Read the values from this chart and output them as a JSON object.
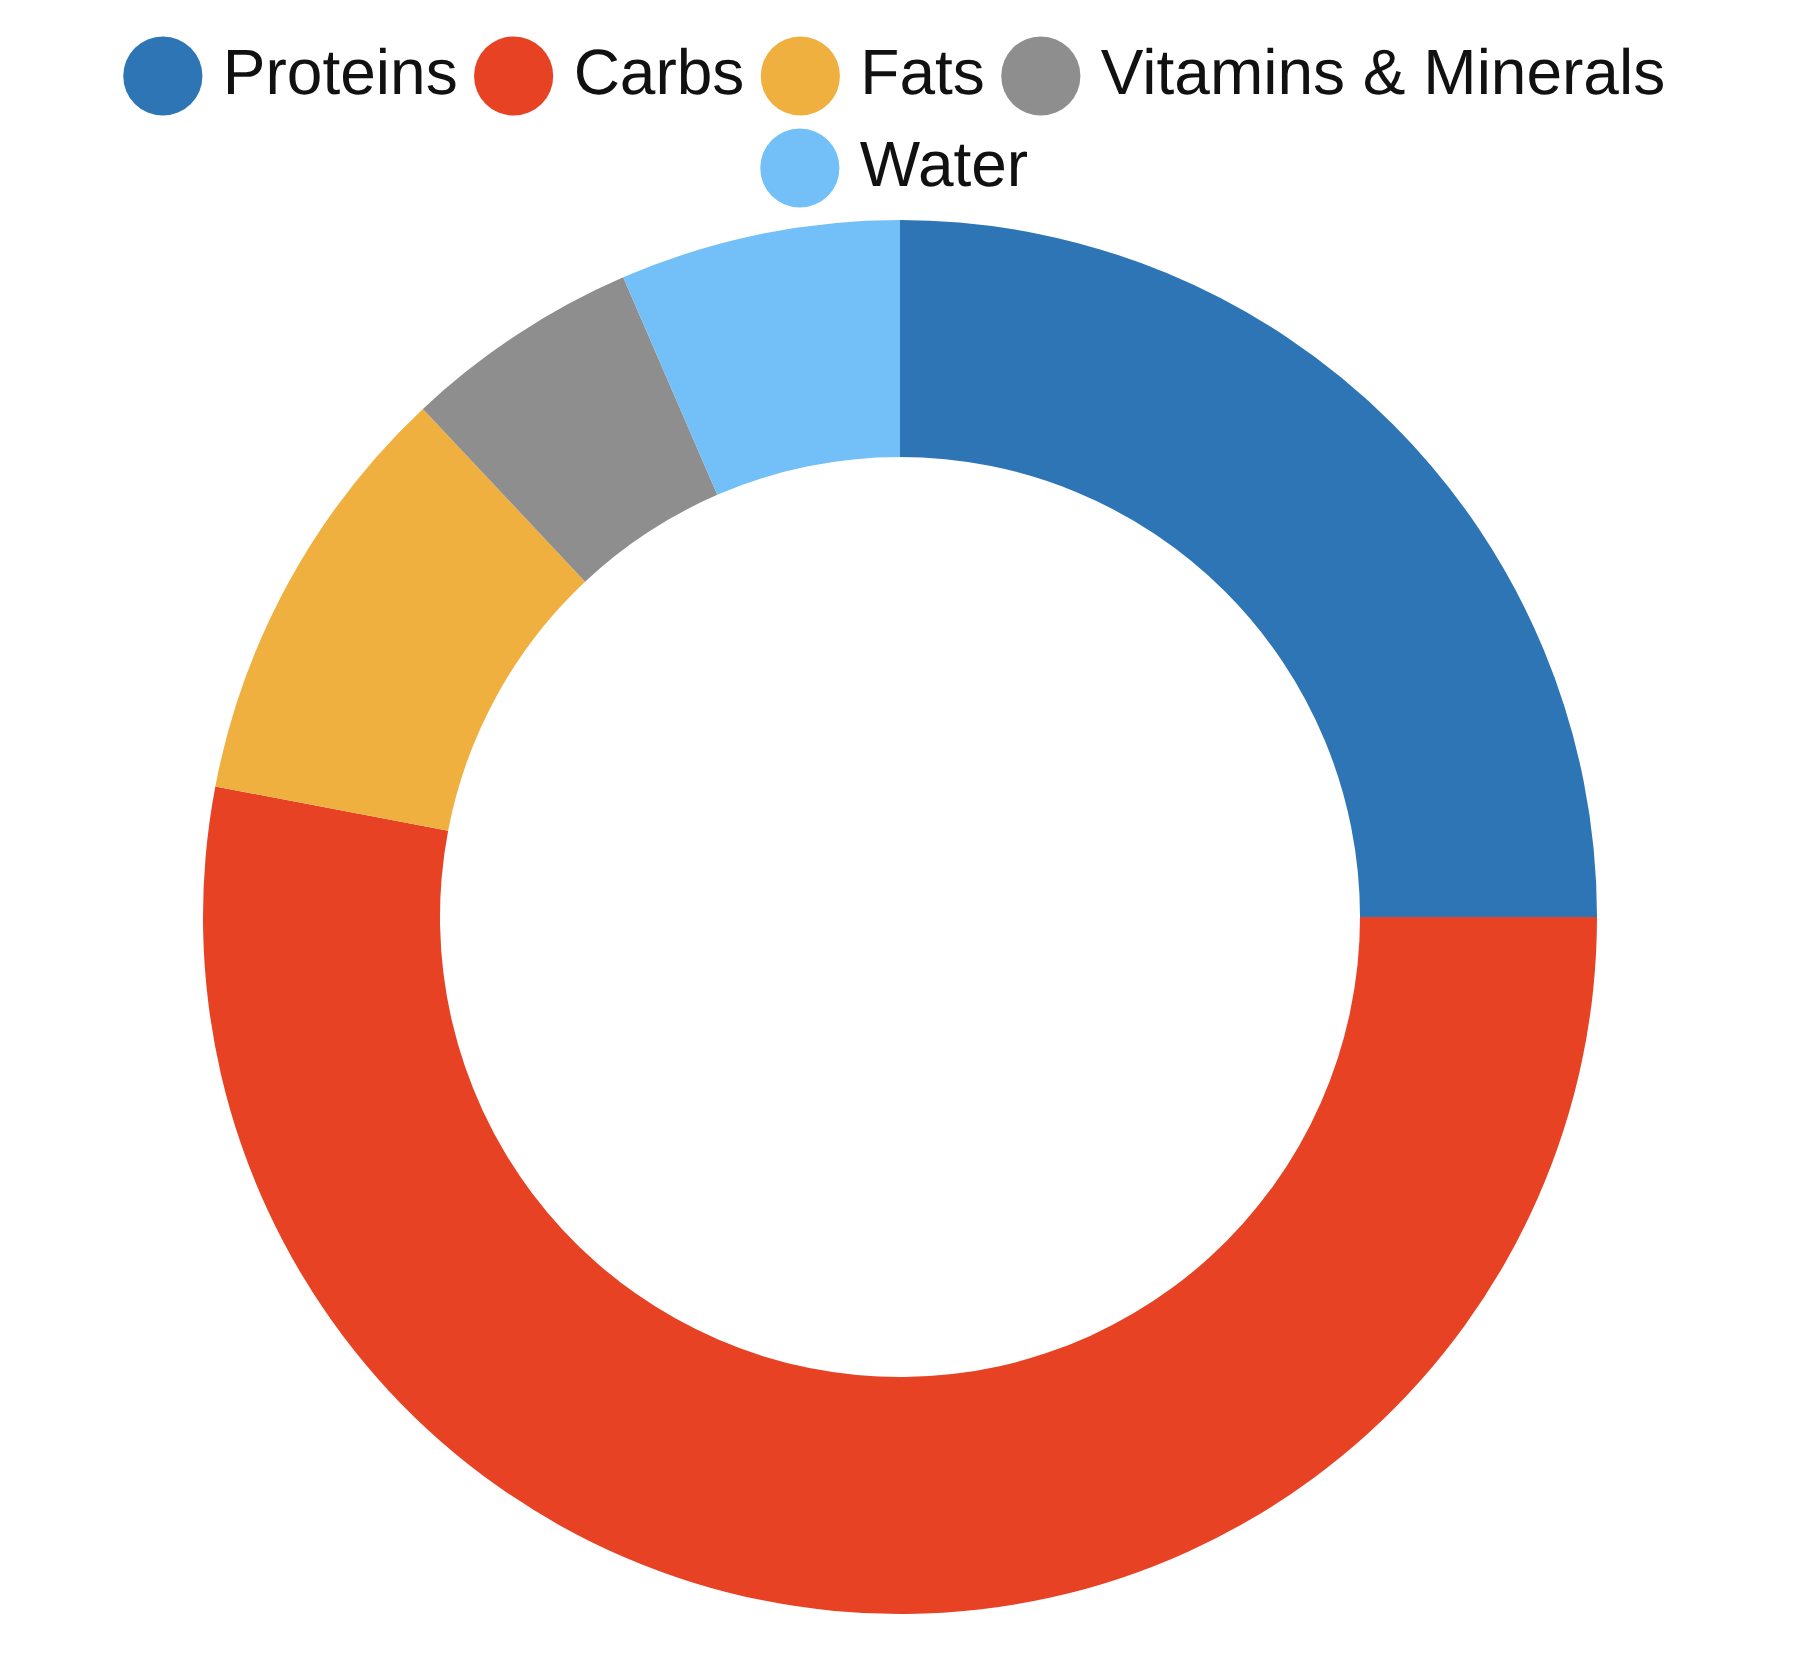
{
  "chart_data": {
    "type": "donut",
    "categories": [
      "Proteins",
      "Carbs",
      "Fats",
      "Vitamins & Minerals",
      "Water"
    ],
    "values": [
      25,
      53,
      10,
      5.5,
      6.5
    ],
    "colors": [
      "#2e75b6",
      "#e84225",
      "#f0b040",
      "#8e8e8e",
      "#73bff8"
    ],
    "legend": "top"
  }
}
